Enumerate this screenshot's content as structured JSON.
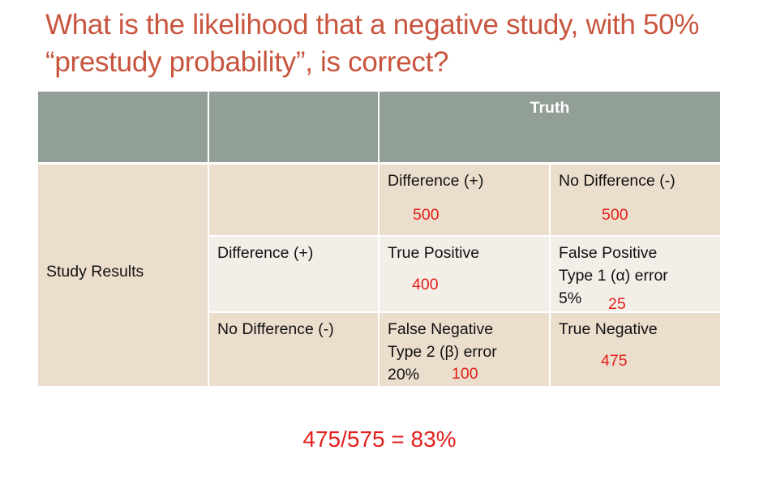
{
  "title": "What is the likelihood that a negative study, with 50% “prestudy probability”, is correct?",
  "table": {
    "header": {
      "truth": "Truth"
    },
    "row_header": "Study Results",
    "truth_columns": [
      {
        "label": "Difference (+)",
        "count": "500"
      },
      {
        "label": "No Difference (-)",
        "count": "500"
      }
    ],
    "rows": [
      {
        "label": "Difference (+)",
        "cells": [
          {
            "lines": [
              "True Positive"
            ],
            "count": "400"
          },
          {
            "lines": [
              "False Positive",
              "Type 1 (α) error",
              "5%"
            ],
            "count": "25"
          }
        ]
      },
      {
        "label": "No Difference (-)",
        "cells": [
          {
            "lines": [
              "False Negative",
              "Type 2 (β) error",
              "20%"
            ],
            "count": "100"
          },
          {
            "lines": [
              "True Negative"
            ],
            "count": "475"
          }
        ]
      }
    ]
  },
  "formula": "475/575 = 83%",
  "colors": {
    "title": "#c8553e",
    "header": "#919f96",
    "cell_dark": "#ecdecd",
    "cell_light": "#f4eee8",
    "numbers": "#e3201b"
  }
}
